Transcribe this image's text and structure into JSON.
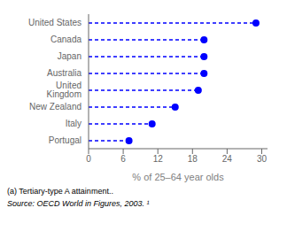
{
  "chart_data": {
    "type": "lollipop",
    "orientation": "horizontal",
    "categories": [
      "Portugal",
      "Italy",
      "New Zealand",
      "United Kingdom",
      "Australia",
      "Japan",
      "Canada",
      "United States"
    ],
    "values": [
      7,
      11,
      15,
      19,
      20,
      20,
      20,
      29
    ],
    "color": "#0000ff",
    "line_style": "dashed",
    "marker": "circle",
    "xlabel": "% of 25–64 year olds",
    "xlim": [
      0,
      31
    ],
    "xticks": [
      0,
      6,
      12,
      18,
      24,
      30
    ],
    "grid": false,
    "annotations": [
      "(a) Tertiary-type A attainment..",
      "Source: OECD World in Figures, 2003. ¹"
    ]
  }
}
